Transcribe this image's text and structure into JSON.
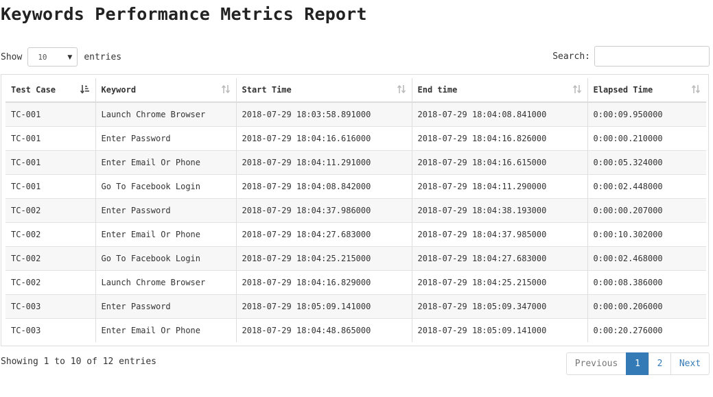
{
  "report": {
    "title": "Keywords Performance Metrics Report"
  },
  "length": {
    "show_label": "Show",
    "selected": "10",
    "entries_label": "entries"
  },
  "search": {
    "label": "Search:",
    "value": ""
  },
  "table": {
    "columns": [
      "Test Case",
      "Keyword",
      "Start Time",
      "End time",
      "Elapsed Time"
    ],
    "sorted_column": "Test Case",
    "rows": [
      [
        "TC-001",
        "Launch Chrome Browser",
        "2018-07-29 18:03:58.891000",
        "2018-07-29 18:04:08.841000",
        "0:00:09.950000"
      ],
      [
        "TC-001",
        "Enter Password",
        "2018-07-29 18:04:16.616000",
        "2018-07-29 18:04:16.826000",
        "0:00:00.210000"
      ],
      [
        "TC-001",
        "Enter Email Or Phone",
        "2018-07-29 18:04:11.291000",
        "2018-07-29 18:04:16.615000",
        "0:00:05.324000"
      ],
      [
        "TC-001",
        "Go To Facebook Login",
        "2018-07-29 18:04:08.842000",
        "2018-07-29 18:04:11.290000",
        "0:00:02.448000"
      ],
      [
        "TC-002",
        "Enter Password",
        "2018-07-29 18:04:37.986000",
        "2018-07-29 18:04:38.193000",
        "0:00:00.207000"
      ],
      [
        "TC-002",
        "Enter Email Or Phone",
        "2018-07-29 18:04:27.683000",
        "2018-07-29 18:04:37.985000",
        "0:00:10.302000"
      ],
      [
        "TC-002",
        "Go To Facebook Login",
        "2018-07-29 18:04:25.215000",
        "2018-07-29 18:04:27.683000",
        "0:00:02.468000"
      ],
      [
        "TC-002",
        "Launch Chrome Browser",
        "2018-07-29 18:04:16.829000",
        "2018-07-29 18:04:25.215000",
        "0:00:08.386000"
      ],
      [
        "TC-003",
        "Enter Password",
        "2018-07-29 18:05:09.141000",
        "2018-07-29 18:05:09.347000",
        "0:00:00.206000"
      ],
      [
        "TC-003",
        "Enter Email Or Phone",
        "2018-07-29 18:04:48.865000",
        "2018-07-29 18:05:09.141000",
        "0:00:20.276000"
      ]
    ]
  },
  "info": {
    "text": "Showing 1 to 10 of 12 entries"
  },
  "pagination": {
    "previous": "Previous",
    "pages": [
      "1",
      "2"
    ],
    "current": "1",
    "next": "Next"
  },
  "colors": {
    "accent": "#337ab7",
    "stripe": "#f7f7f7",
    "border": "#dddddd"
  },
  "icons": {
    "sort_active": "sort-amount-asc-icon",
    "sort_both": "sort-both-icon",
    "select_caret": "caret-down-icon"
  }
}
